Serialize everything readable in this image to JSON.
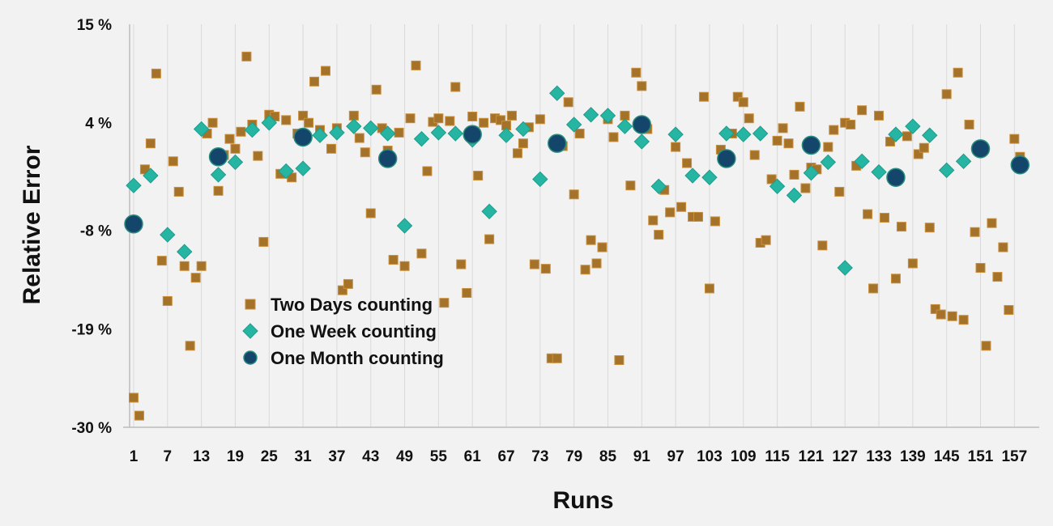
{
  "chart_data": {
    "type": "scatter",
    "xlabel": "Runs",
    "ylabel": "Relative Error",
    "ylim": [
      -30,
      15
    ],
    "y_ticks": [
      {
        "value": 15,
        "label": "15 %"
      },
      {
        "value": 4,
        "label": "4 %"
      },
      {
        "value": -8,
        "label": "-8 %"
      },
      {
        "value": -19,
        "label": "-19 %"
      },
      {
        "value": -30,
        "label": "-30 %"
      }
    ],
    "x_range": [
      1,
      160
    ],
    "x_ticks": [
      1,
      7,
      13,
      19,
      25,
      31,
      37,
      43,
      49,
      55,
      61,
      67,
      73,
      79,
      85,
      91,
      97,
      103,
      109,
      115,
      121,
      127,
      133,
      139,
      145,
      151,
      157
    ],
    "grid": "vertical gridlines on",
    "legend_position": "lower-left inside plot",
    "series": [
      {
        "name": "Two Days counting",
        "marker": "square",
        "color": "#a5722a",
        "stroke": "#c98f3c",
        "points": [
          [
            1,
            -26.7
          ],
          [
            2,
            -28.7
          ],
          [
            3,
            -1.2
          ],
          [
            4,
            1.7
          ],
          [
            5,
            9.5
          ],
          [
            6,
            -11.4
          ],
          [
            7,
            -15.9
          ],
          [
            8,
            -0.3
          ],
          [
            9,
            -3.7
          ],
          [
            10,
            -12.0
          ],
          [
            11,
            -20.9
          ],
          [
            12,
            -13.3
          ],
          [
            13,
            -12.0
          ],
          [
            14,
            2.8
          ],
          [
            15,
            4.0
          ],
          [
            16,
            -3.6
          ],
          [
            17,
            0.4
          ],
          [
            18,
            2.2
          ],
          [
            19,
            1.1
          ],
          [
            20,
            3.0
          ],
          [
            21,
            11.4
          ],
          [
            22,
            3.8
          ],
          [
            23,
            0.3
          ],
          [
            24,
            -9.3
          ],
          [
            25,
            4.9
          ],
          [
            26,
            4.7
          ],
          [
            27,
            -1.7
          ],
          [
            28,
            4.3
          ],
          [
            29,
            -2.1
          ],
          [
            30,
            2.8
          ],
          [
            31,
            4.8
          ],
          [
            32,
            4.0
          ],
          [
            33,
            8.6
          ],
          [
            34,
            3.2
          ],
          [
            35,
            9.8
          ],
          [
            36,
            1.1
          ],
          [
            37,
            3.4
          ],
          [
            38,
            -14.7
          ],
          [
            39,
            -14.0
          ],
          [
            40,
            4.8
          ],
          [
            41,
            2.3
          ],
          [
            42,
            0.7
          ],
          [
            43,
            -6.1
          ],
          [
            44,
            7.7
          ],
          [
            45,
            3.4
          ],
          [
            46,
            0.9
          ],
          [
            47,
            -11.3
          ],
          [
            48,
            2.9
          ],
          [
            49,
            -12.0
          ],
          [
            50,
            4.5
          ],
          [
            51,
            10.4
          ],
          [
            52,
            -10.6
          ],
          [
            53,
            -1.4
          ],
          [
            54,
            4.1
          ],
          [
            55,
            4.5
          ],
          [
            56,
            -16.1
          ],
          [
            57,
            4.2
          ],
          [
            58,
            8.0
          ],
          [
            59,
            -11.8
          ],
          [
            60,
            -15.0
          ],
          [
            61,
            4.7
          ],
          [
            62,
            -1.9
          ],
          [
            63,
            4.0
          ],
          [
            64,
            -9.0
          ],
          [
            65,
            4.5
          ],
          [
            66,
            4.3
          ],
          [
            67,
            3.7
          ],
          [
            68,
            4.8
          ],
          [
            69,
            0.6
          ],
          [
            70,
            1.7
          ],
          [
            71,
            3.5
          ],
          [
            72,
            -11.8
          ],
          [
            73,
            4.4
          ],
          [
            74,
            -12.3
          ],
          [
            75,
            -22.3
          ],
          [
            76,
            -22.3
          ],
          [
            77,
            1.4
          ],
          [
            78,
            6.3
          ],
          [
            79,
            -4.0
          ],
          [
            80,
            2.8
          ],
          [
            81,
            -12.4
          ],
          [
            82,
            -9.1
          ],
          [
            83,
            -11.7
          ],
          [
            84,
            -9.9
          ],
          [
            85,
            4.4
          ],
          [
            86,
            2.4
          ],
          [
            87,
            -22.5
          ],
          [
            88,
            4.8
          ],
          [
            89,
            -3.0
          ],
          [
            90,
            9.6
          ],
          [
            91,
            8.1
          ],
          [
            92,
            3.3
          ],
          [
            93,
            -6.9
          ],
          [
            94,
            -8.5
          ],
          [
            95,
            -3.5
          ],
          [
            96,
            -6.0
          ],
          [
            97,
            1.3
          ],
          [
            98,
            -5.4
          ],
          [
            99,
            -0.5
          ],
          [
            100,
            -6.5
          ],
          [
            101,
            -6.5
          ],
          [
            102,
            6.9
          ],
          [
            103,
            -14.5
          ],
          [
            104,
            -7.0
          ],
          [
            105,
            1.0
          ],
          [
            106,
            0.3
          ],
          [
            107,
            2.8
          ],
          [
            108,
            6.9
          ],
          [
            109,
            6.3
          ],
          [
            110,
            4.5
          ],
          [
            111,
            0.4
          ],
          [
            112,
            -9.4
          ],
          [
            113,
            -9.1
          ],
          [
            114,
            -2.3
          ],
          [
            115,
            2.0
          ],
          [
            116,
            3.4
          ],
          [
            117,
            1.7
          ],
          [
            118,
            -1.8
          ],
          [
            119,
            5.8
          ],
          [
            120,
            -3.3
          ],
          [
            121,
            -1.0
          ],
          [
            122,
            -1.2
          ],
          [
            123,
            -9.7
          ],
          [
            124,
            1.3
          ],
          [
            125,
            3.2
          ],
          [
            126,
            -3.7
          ],
          [
            127,
            4.0
          ],
          [
            128,
            3.8
          ],
          [
            129,
            -0.8
          ],
          [
            130,
            5.4
          ],
          [
            131,
            -6.2
          ],
          [
            132,
            -14.5
          ],
          [
            133,
            4.8
          ],
          [
            134,
            -6.6
          ],
          [
            135,
            1.9
          ],
          [
            136,
            -13.4
          ],
          [
            137,
            -7.6
          ],
          [
            138,
            2.5
          ],
          [
            139,
            -11.7
          ],
          [
            140,
            0.5
          ],
          [
            141,
            1.2
          ],
          [
            142,
            -7.7
          ],
          [
            143,
            -16.8
          ],
          [
            144,
            -17.4
          ],
          [
            145,
            7.2
          ],
          [
            146,
            -17.6
          ],
          [
            147,
            9.6
          ],
          [
            148,
            -18.0
          ],
          [
            149,
            3.8
          ],
          [
            150,
            -8.2
          ],
          [
            151,
            -12.2
          ],
          [
            152,
            -20.9
          ],
          [
            153,
            -7.2
          ],
          [
            154,
            -13.2
          ],
          [
            155,
            -9.9
          ],
          [
            156,
            -16.9
          ],
          [
            157,
            2.2
          ],
          [
            158,
            0.2
          ]
        ]
      },
      {
        "name": "One Week counting",
        "marker": "diamond",
        "color": "#26b5a2",
        "stroke": "#1f9c8b",
        "points": [
          [
            1,
            -3.0
          ],
          [
            4,
            -1.9
          ],
          [
            7,
            -8.5
          ],
          [
            10,
            -10.4
          ],
          [
            13,
            3.3
          ],
          [
            16,
            -1.8
          ],
          [
            19,
            -0.4
          ],
          [
            22,
            3.2
          ],
          [
            25,
            4.0
          ],
          [
            28,
            -1.4
          ],
          [
            31,
            -1.1
          ],
          [
            34,
            2.6
          ],
          [
            37,
            2.9
          ],
          [
            40,
            3.6
          ],
          [
            43,
            3.4
          ],
          [
            46,
            2.8
          ],
          [
            49,
            -7.5
          ],
          [
            52,
            2.2
          ],
          [
            55,
            2.9
          ],
          [
            58,
            2.8
          ],
          [
            61,
            2.1
          ],
          [
            64,
            -5.9
          ],
          [
            67,
            2.6
          ],
          [
            70,
            3.3
          ],
          [
            73,
            -2.3
          ],
          [
            76,
            7.3
          ],
          [
            79,
            3.8
          ],
          [
            82,
            4.9
          ],
          [
            85,
            4.8
          ],
          [
            88,
            3.6
          ],
          [
            91,
            1.9
          ],
          [
            94,
            -3.1
          ],
          [
            97,
            2.7
          ],
          [
            100,
            -1.9
          ],
          [
            103,
            -2.1
          ],
          [
            106,
            2.8
          ],
          [
            109,
            2.7
          ],
          [
            112,
            2.8
          ],
          [
            115,
            -3.1
          ],
          [
            118,
            -4.1
          ],
          [
            121,
            -1.6
          ],
          [
            124,
            -0.4
          ],
          [
            127,
            -12.2
          ],
          [
            130,
            -0.3
          ],
          [
            133,
            -1.5
          ],
          [
            136,
            2.7
          ],
          [
            139,
            3.6
          ],
          [
            142,
            2.6
          ],
          [
            145,
            -1.3
          ],
          [
            148,
            -0.3
          ]
        ]
      },
      {
        "name": "One Month counting",
        "marker": "circle",
        "color": "#14466c",
        "stroke": "#2a8c7c",
        "points": [
          [
            1,
            -7.3
          ],
          [
            16,
            0.2
          ],
          [
            31,
            2.4
          ],
          [
            46,
            0.0
          ],
          [
            61,
            2.7
          ],
          [
            76,
            1.7
          ],
          [
            91,
            3.8
          ],
          [
            106,
            0.0
          ],
          [
            121,
            1.5
          ],
          [
            136,
            -2.1
          ],
          [
            151,
            1.1
          ],
          [
            158,
            -0.7
          ]
        ]
      }
    ]
  }
}
